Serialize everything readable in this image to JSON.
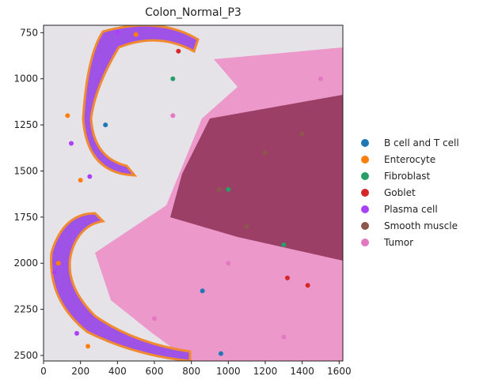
{
  "chart_data": {
    "type": "scatter",
    "title": "Colon_Normal_P3",
    "xlim": [
      0,
      1620
    ],
    "ylim": [
      2530,
      710
    ],
    "xticks": [
      0,
      200,
      400,
      600,
      800,
      1000,
      1200,
      1400,
      1600
    ],
    "yticks": [
      750,
      1000,
      1250,
      1500,
      1750,
      2000,
      2250,
      2500
    ],
    "legend": "right",
    "series": [
      {
        "name": "B cell and T cell",
        "color": "#1f77b4",
        "x": [
          335,
          960,
          860
        ],
        "y": [
          1250,
          2490,
          2150
        ]
      },
      {
        "name": "Enterocyte",
        "color": "#ff7f0e",
        "x": [
          130,
          200,
          80,
          240,
          500
        ],
        "y": [
          1200,
          1550,
          2000,
          2450,
          760
        ]
      },
      {
        "name": "Fibroblast",
        "color": "#279e68",
        "x": [
          700,
          1000,
          1300
        ],
        "y": [
          1000,
          1600,
          1900
        ]
      },
      {
        "name": "Goblet",
        "color": "#d62728",
        "x": [
          730,
          1320,
          1430
        ],
        "y": [
          850,
          2080,
          2120
        ]
      },
      {
        "name": "Plasma cell",
        "color": "#aa40fc",
        "x": [
          150,
          250,
          60,
          400,
          180
        ],
        "y": [
          1350,
          1530,
          2050,
          750,
          2380
        ]
      },
      {
        "name": "Smooth muscle",
        "color": "#8c564b",
        "x": [
          1200,
          1400,
          950,
          1100
        ],
        "y": [
          1400,
          1300,
          1600,
          1800
        ]
      },
      {
        "name": "Tumor",
        "color": "#e377c2",
        "x": [
          700,
          1000,
          600,
          1300,
          1500
        ],
        "y": [
          1200,
          2000,
          2300,
          2400,
          1000
        ]
      }
    ]
  }
}
